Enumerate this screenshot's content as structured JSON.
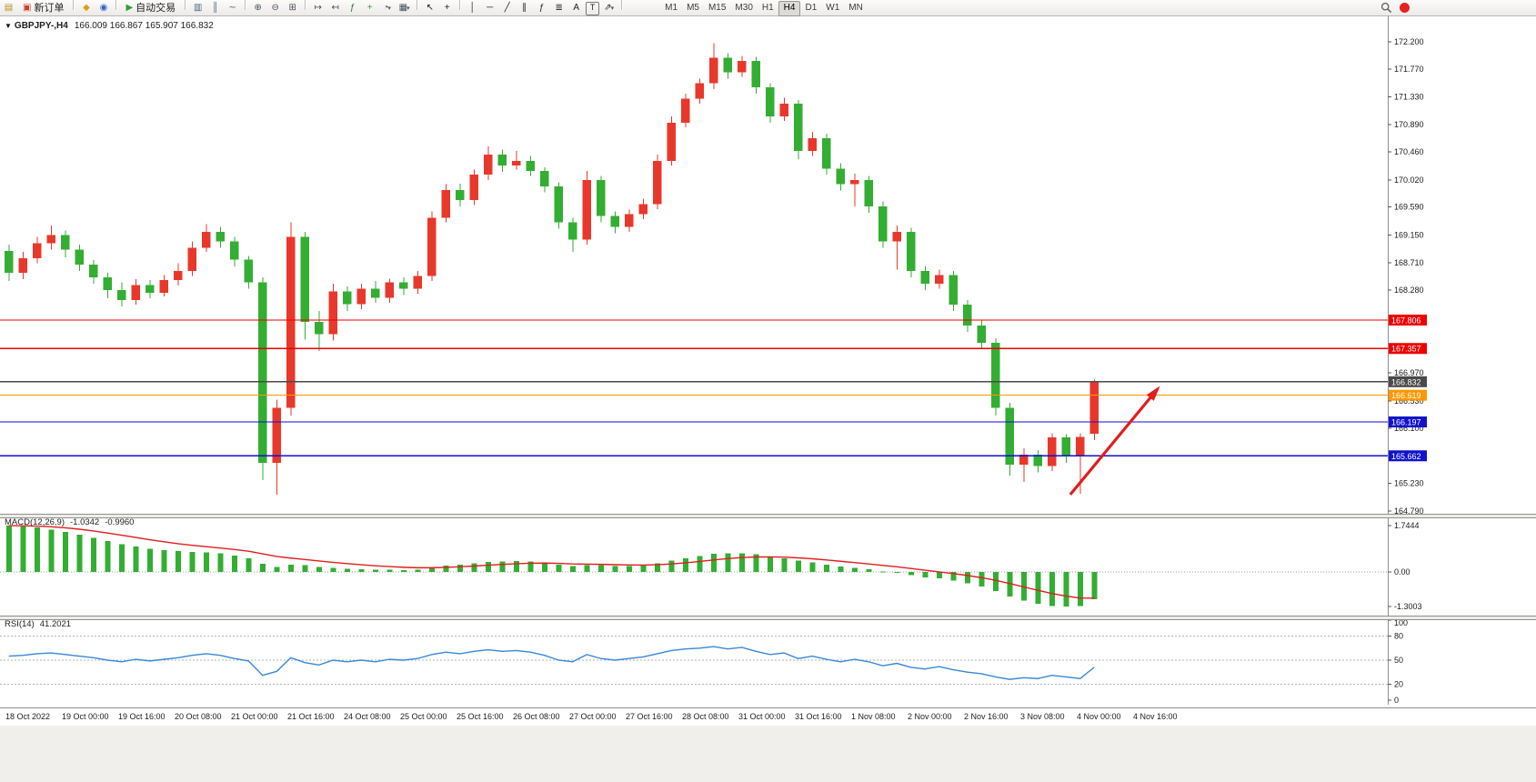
{
  "toolbar": {
    "new_order_label": "新订单",
    "autotrading_label": "自动交易",
    "timeframes": [
      "M1",
      "M5",
      "M15",
      "M30",
      "H1",
      "H4",
      "D1",
      "W1",
      "MN"
    ],
    "active_timeframe": "H4",
    "items": [
      {
        "kind": "icon",
        "name": "chart-window-icon",
        "glyph": "▤",
        "color": "#b98f1f"
      },
      {
        "kind": "button",
        "name": "new-order-button",
        "icon_name": "new-order-icon",
        "icon_glyph": "▣",
        "icon_color": "#c8402f",
        "label_key": "new_order_label"
      },
      {
        "kind": "sep"
      },
      {
        "kind": "icon",
        "name": "navigator-icon",
        "glyph": "◆",
        "color": "#dd9f10"
      },
      {
        "kind": "icon",
        "name": "market-watch-icon",
        "glyph": "◉",
        "color": "#2f63bd"
      },
      {
        "kind": "sep"
      },
      {
        "kind": "button",
        "name": "autotrading-button",
        "icon_name": "autotrading-play-icon",
        "icon_glyph": "▶",
        "icon_color": "#2f9e36",
        "label_key": "autotrading_label"
      },
      {
        "kind": "sep"
      },
      {
        "kind": "icon",
        "name": "bar-chart-icon",
        "glyph": "▥",
        "color": "#46657f"
      },
      {
        "kind": "icon",
        "name": "candlestick-chart-icon",
        "glyph": "║",
        "color": "#46657f"
      },
      {
        "kind": "icon",
        "name": "line-chart-icon",
        "glyph": "∼",
        "color": "#46657f"
      },
      {
        "kind": "sep"
      },
      {
        "kind": "icon",
        "name": "zoom-in-icon",
        "glyph": "⊕",
        "color": "#44505c"
      },
      {
        "kind": "icon",
        "name": "zoom-out-icon",
        "glyph": "⊖",
        "color": "#44505c"
      },
      {
        "kind": "icon",
        "name": "tile-windows-icon",
        "glyph": "⊞",
        "color": "#44505c"
      },
      {
        "kind": "sep"
      },
      {
        "kind": "icon",
        "name": "auto-scroll-icon",
        "glyph": "↦",
        "color": "#44505c"
      },
      {
        "kind": "icon",
        "name": "chart-shift-icon",
        "glyph": "↤",
        "color": "#44505c"
      },
      {
        "kind": "icon",
        "name": "indicators-icon",
        "glyph": "ƒ",
        "color": "#1f7a3c"
      },
      {
        "kind": "icon",
        "name": "add-indicator-icon",
        "glyph": "+",
        "color": "#2f9e36"
      },
      {
        "kind": "icon",
        "name": "periods-icon",
        "glyph": "◔",
        "color": "#44505c",
        "dropdown": true
      },
      {
        "kind": "icon",
        "name": "templates-icon",
        "glyph": "▦",
        "color": "#44505c",
        "dropdown": true
      },
      {
        "kind": "sep"
      },
      {
        "kind": "icon",
        "name": "cursor-icon",
        "glyph": "↖",
        "color": "#1e1e1e"
      },
      {
        "kind": "icon",
        "name": "crosshair-icon",
        "glyph": "+",
        "color": "#1e1e1e"
      },
      {
        "kind": "sep"
      },
      {
        "kind": "icon",
        "name": "vertical-line-icon",
        "glyph": "│",
        "color": "#1e1e1e"
      },
      {
        "kind": "icon",
        "name": "horizontal-line-icon",
        "glyph": "─",
        "color": "#1e1e1e"
      },
      {
        "kind": "icon",
        "name": "trendline-icon",
        "glyph": "╱",
        "color": "#1e1e1e"
      },
      {
        "kind": "icon",
        "name": "equidistant-channel-icon",
        "glyph": "∥",
        "color": "#1e1e1e"
      },
      {
        "kind": "icon",
        "name": "fibonacci-icon",
        "glyph": "ƒ",
        "color": "#1e1e1e"
      },
      {
        "kind": "icon",
        "name": "gridlines-icon",
        "glyph": "≣",
        "color": "#1e1e1e"
      },
      {
        "kind": "icon",
        "name": "text-icon",
        "glyph": "A",
        "color": "#1e1e1e"
      },
      {
        "kind": "icon",
        "name": "text-label-icon",
        "glyph": "T",
        "color": "#1e1e1e",
        "boxed": true
      },
      {
        "kind": "icon",
        "name": "arrows-tool-icon",
        "glyph": "⇗",
        "color": "#1e1e1e",
        "dropdown": true
      },
      {
        "kind": "sep"
      },
      {
        "kind": "tf-group"
      }
    ]
  },
  "chart": {
    "symbol_period": "GBPJPY-,H4",
    "ohlc_text": "166.009 166.867 165.907 166.832",
    "collapse_glyph": "▼"
  },
  "chart_data": {
    "type": "candlestick",
    "symbol": "GBPJPY-",
    "timeframe": "H4",
    "last_ohlc": {
      "open": 166.009,
      "high": 166.867,
      "low": 165.907,
      "close": 166.832
    },
    "ylim": [
      164.79,
      172.2
    ],
    "bull_color": "#e8382b",
    "bear_color": "#33ae33",
    "y_ticks": [
      "172.200",
      "171.770",
      "171.330",
      "170.890",
      "170.460",
      "170.020",
      "169.590",
      "169.150",
      "168.710",
      "168.280",
      "166.970",
      "166.530",
      "166.100",
      "165.230",
      "164.790"
    ],
    "x_labels": [
      "18 Oct 2022",
      "19 Oct 00:00",
      "19 Oct 16:00",
      "20 Oct 08:00",
      "21 Oct 00:00",
      "21 Oct 16:00",
      "24 Oct 08:00",
      "25 Oct 00:00",
      "25 Oct 16:00",
      "26 Oct 08:00",
      "27 Oct 00:00",
      "27 Oct 16:00",
      "28 Oct 08:00",
      "31 Oct 00:00",
      "31 Oct 16:00",
      "1 Nov 08:00",
      "2 Nov 00:00",
      "2 Nov 16:00",
      "3 Nov 08:00",
      "4 Nov 00:00",
      "4 Nov 16:00"
    ],
    "bars_per_label": 4,
    "price_lines": [
      {
        "price": 167.806,
        "label": "167.806",
        "color": "#ee0000"
      },
      {
        "price": 167.357,
        "label": "167.357",
        "color": "#ee0000"
      },
      {
        "price": 166.832,
        "label": "166.832",
        "color": "#4a4a4a"
      },
      {
        "price": 166.619,
        "label": "166.619",
        "color": "#ff9800"
      },
      {
        "price": 166.197,
        "label": "166.197",
        "color": "#1212cc"
      },
      {
        "price": 165.662,
        "label": "165.662",
        "color": "#1212cc"
      }
    ],
    "arrow_annotation": {
      "from_bar": 75.3,
      "from_price": 165.05,
      "to_bar": 81.5,
      "to_price": 166.72,
      "color": "#e11d1d"
    },
    "candles": [
      [
        168.9,
        169.0,
        168.42,
        168.55
      ],
      [
        168.55,
        168.88,
        168.45,
        168.78
      ],
      [
        168.78,
        169.12,
        168.7,
        169.02
      ],
      [
        169.02,
        169.3,
        168.92,
        169.15
      ],
      [
        169.15,
        169.22,
        168.8,
        168.92
      ],
      [
        168.92,
        169.0,
        168.58,
        168.68
      ],
      [
        168.68,
        168.75,
        168.38,
        168.48
      ],
      [
        168.48,
        168.55,
        168.15,
        168.28
      ],
      [
        168.28,
        168.4,
        168.02,
        168.12
      ],
      [
        168.12,
        168.45,
        168.05,
        168.36
      ],
      [
        168.36,
        168.44,
        168.15,
        168.24
      ],
      [
        168.24,
        168.52,
        168.18,
        168.44
      ],
      [
        168.44,
        168.7,
        168.35,
        168.58
      ],
      [
        168.58,
        169.05,
        168.5,
        168.95
      ],
      [
        168.95,
        169.32,
        168.88,
        169.2
      ],
      [
        169.2,
        169.28,
        168.95,
        169.05
      ],
      [
        169.05,
        169.12,
        168.65,
        168.76
      ],
      [
        168.76,
        168.82,
        168.3,
        168.4
      ],
      [
        168.4,
        168.48,
        165.28,
        165.55
      ],
      [
        165.55,
        166.55,
        165.05,
        166.42
      ],
      [
        166.42,
        169.35,
        166.3,
        169.12
      ],
      [
        169.12,
        169.2,
        167.5,
        167.78
      ],
      [
        167.78,
        167.95,
        167.32,
        167.58
      ],
      [
        167.58,
        168.38,
        167.48,
        168.26
      ],
      [
        168.26,
        168.34,
        167.95,
        168.06
      ],
      [
        168.06,
        168.38,
        167.98,
        168.3
      ],
      [
        168.3,
        168.42,
        168.08,
        168.16
      ],
      [
        168.16,
        168.46,
        168.08,
        168.4
      ],
      [
        168.4,
        168.48,
        168.2,
        168.3
      ],
      [
        168.3,
        168.58,
        168.22,
        168.5
      ],
      [
        168.5,
        169.52,
        168.42,
        169.42
      ],
      [
        169.42,
        169.95,
        169.35,
        169.86
      ],
      [
        169.86,
        169.96,
        169.6,
        169.7
      ],
      [
        169.7,
        170.18,
        169.62,
        170.1
      ],
      [
        170.1,
        170.55,
        170.02,
        170.42
      ],
      [
        170.42,
        170.5,
        170.15,
        170.25
      ],
      [
        170.25,
        170.48,
        170.18,
        170.32
      ],
      [
        170.32,
        170.4,
        170.08,
        170.16
      ],
      [
        170.16,
        170.22,
        169.82,
        169.92
      ],
      [
        169.92,
        169.98,
        169.25,
        169.35
      ],
      [
        169.35,
        169.42,
        168.88,
        169.08
      ],
      [
        169.08,
        170.16,
        169.0,
        170.02
      ],
      [
        170.02,
        170.08,
        169.35,
        169.45
      ],
      [
        169.45,
        169.52,
        169.18,
        169.28
      ],
      [
        169.28,
        169.55,
        169.2,
        169.48
      ],
      [
        169.48,
        169.72,
        169.4,
        169.64
      ],
      [
        169.64,
        170.42,
        169.56,
        170.32
      ],
      [
        170.32,
        171.02,
        170.25,
        170.92
      ],
      [
        170.92,
        171.38,
        170.85,
        171.3
      ],
      [
        171.3,
        171.62,
        171.22,
        171.55
      ],
      [
        171.55,
        172.18,
        171.45,
        171.95
      ],
      [
        171.95,
        172.02,
        171.62,
        171.72
      ],
      [
        171.72,
        171.98,
        171.65,
        171.9
      ],
      [
        171.9,
        171.96,
        171.38,
        171.48
      ],
      [
        171.48,
        171.55,
        170.92,
        171.02
      ],
      [
        171.02,
        171.32,
        170.95,
        171.22
      ],
      [
        171.22,
        171.28,
        170.35,
        170.48
      ],
      [
        170.48,
        170.78,
        170.4,
        170.68
      ],
      [
        170.68,
        170.75,
        170.1,
        170.2
      ],
      [
        170.2,
        170.28,
        169.85,
        169.95
      ],
      [
        169.95,
        170.12,
        169.6,
        170.02
      ],
      [
        170.02,
        170.08,
        169.5,
        169.6
      ],
      [
        169.6,
        169.68,
        168.95,
        169.05
      ],
      [
        169.05,
        169.3,
        168.6,
        169.2
      ],
      [
        169.2,
        169.26,
        168.48,
        168.58
      ],
      [
        168.58,
        168.66,
        168.28,
        168.38
      ],
      [
        168.38,
        168.6,
        168.3,
        168.52
      ],
      [
        168.52,
        168.58,
        167.95,
        168.05
      ],
      [
        168.05,
        168.12,
        167.62,
        167.72
      ],
      [
        167.72,
        167.8,
        167.35,
        167.45
      ],
      [
        167.45,
        167.52,
        166.3,
        166.42
      ],
      [
        166.42,
        166.5,
        165.35,
        165.52
      ],
      [
        165.52,
        165.78,
        165.25,
        165.68
      ],
      [
        165.68,
        165.75,
        165.4,
        165.5
      ],
      [
        165.5,
        166.02,
        165.42,
        165.95
      ],
      [
        165.95,
        166.0,
        165.55,
        165.65
      ],
      [
        165.65,
        166.02,
        165.06,
        165.96
      ],
      [
        166.009,
        166.867,
        165.907,
        166.832
      ]
    ],
    "macd": {
      "title": "MACD(12,26,9)",
      "macd_value": "-1.0342",
      "signal_value": "-0.9960",
      "histogram_color": "#33ae33",
      "signal_color": "#e11d1d",
      "scale_labels": [
        {
          "value": 1.7444,
          "text": "1.7444"
        },
        {
          "value": 0,
          "text": "0.00"
        },
        {
          "value": -1.3003,
          "text": "-1.3003"
        }
      ],
      "values": [
        1.7444,
        1.72,
        1.68,
        1.6,
        1.5,
        1.4,
        1.28,
        1.16,
        1.05,
        0.96,
        0.88,
        0.82,
        0.78,
        0.76,
        0.74,
        0.7,
        0.62,
        0.52,
        0.3,
        0.18,
        0.28,
        0.26,
        0.18,
        0.16,
        0.12,
        0.1,
        0.08,
        0.08,
        0.07,
        0.09,
        0.16,
        0.24,
        0.28,
        0.33,
        0.38,
        0.4,
        0.41,
        0.4,
        0.36,
        0.28,
        0.22,
        0.26,
        0.26,
        0.22,
        0.22,
        0.24,
        0.32,
        0.42,
        0.52,
        0.6,
        0.68,
        0.7,
        0.7,
        0.66,
        0.58,
        0.52,
        0.42,
        0.36,
        0.28,
        0.2,
        0.16,
        0.1,
        0.02,
        -0.02,
        -0.12,
        -0.2,
        -0.24,
        -0.32,
        -0.42,
        -0.54,
        -0.72,
        -0.92,
        -1.08,
        -1.2,
        -1.28,
        -1.3003,
        -1.28,
        -1.0342
      ]
    },
    "rsi": {
      "title": "RSI(14)",
      "value": "41.2021",
      "line_color": "#3a87d8",
      "levels": [
        80,
        50,
        20
      ],
      "scale_labels": [
        {
          "value": 100,
          "text": "100"
        },
        {
          "value": 80,
          "text": "80"
        },
        {
          "value": 50,
          "text": "50"
        },
        {
          "value": 20,
          "text": "20"
        },
        {
          "value": 0,
          "text": "0"
        }
      ],
      "values": [
        55,
        56,
        58,
        59,
        57,
        55,
        53,
        50,
        48,
        51,
        49,
        51,
        53,
        56,
        58,
        56,
        52,
        49,
        31,
        36,
        53,
        47,
        44,
        50,
        48,
        50,
        48,
        51,
        50,
        52,
        57,
        60,
        58,
        61,
        63,
        61,
        62,
        60,
        56,
        50,
        48,
        57,
        52,
        50,
        52,
        54,
        58,
        62,
        64,
        65,
        67,
        64,
        66,
        61,
        57,
        59,
        52,
        55,
        51,
        48,
        51,
        48,
        43,
        46,
        41,
        39,
        42,
        38,
        35,
        33,
        29,
        26,
        28,
        27,
        31,
        29,
        27,
        41.2
      ]
    }
  }
}
